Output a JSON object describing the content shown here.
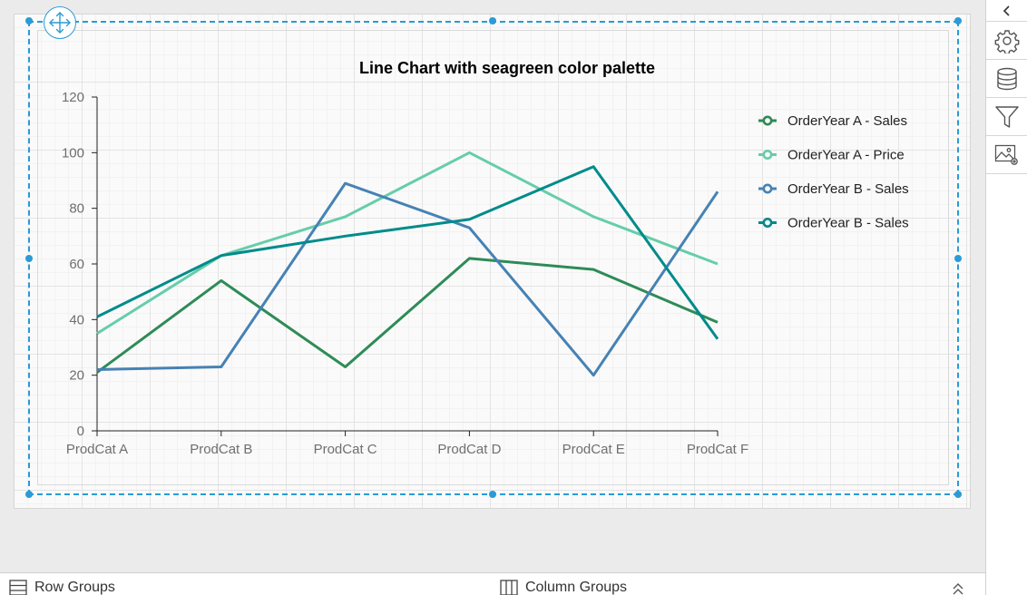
{
  "chart_data": {
    "type": "line",
    "title": "Line Chart with seagreen color palette",
    "categories": [
      "ProdCat A",
      "ProdCat B",
      "ProdCat C",
      "ProdCat D",
      "ProdCat E",
      "ProdCat F"
    ],
    "ylim": [
      0,
      120
    ],
    "yticks": [
      0,
      20,
      40,
      60,
      80,
      100,
      120
    ],
    "series": [
      {
        "name": "OrderYear A - Sales",
        "color": "#2e8b57",
        "values": [
          21,
          54,
          23,
          62,
          58,
          39
        ]
      },
      {
        "name": "OrderYear A - Price",
        "color": "#66cdaa",
        "values": [
          35,
          63,
          77,
          100,
          77,
          60
        ]
      },
      {
        "name": "OrderYear B - Sales",
        "color": "#4682b4",
        "values": [
          22,
          23,
          89,
          73,
          20,
          86
        ]
      },
      {
        "name": "OrderYear B - Sales",
        "color": "#008b8b",
        "values": [
          41,
          63,
          70,
          76,
          95,
          33
        ]
      }
    ],
    "legend_position": "top-right",
    "grid": false
  },
  "right_panel": {
    "tools": [
      {
        "icon": "gear-icon",
        "name": "properties-button"
      },
      {
        "icon": "database-icon",
        "name": "data-button"
      },
      {
        "icon": "filter-icon",
        "name": "filter-button"
      },
      {
        "icon": "image-settings-icon",
        "name": "image-settings-button"
      }
    ]
  },
  "group_bar": {
    "row_groups": "Row Groups",
    "column_groups": "Column Groups"
  },
  "colors": {
    "selection": "#2a9bd6"
  }
}
